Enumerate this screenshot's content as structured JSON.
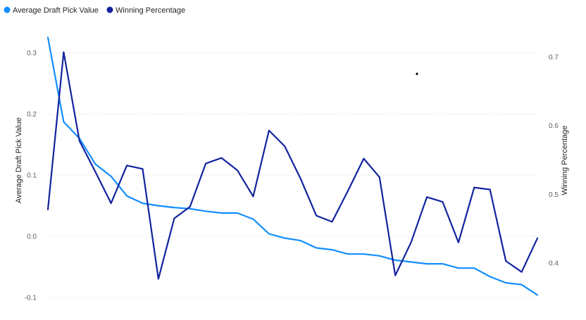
{
  "chart_data": {
    "type": "line",
    "legend": [
      {
        "name": "Average Draft Pick Value",
        "color": "#118dff"
      },
      {
        "name": "Winning Percentage",
        "color": "#12239e"
      }
    ],
    "ylabel_left": "Average Draft Pick Value",
    "ylabel_right": "Winning Percentage",
    "y_left_ticks": [
      "0.3",
      "0.2",
      "0.1",
      "0.0",
      "-0.1"
    ],
    "y_left_tick_values": [
      0.3,
      0.2,
      0.1,
      0.0,
      -0.1
    ],
    "y_right_ticks": [
      "0.7",
      "0.6",
      "0.5",
      "0.4"
    ],
    "y_right_tick_values": [
      0.7,
      0.6,
      0.5,
      0.4
    ],
    "y_left_range": [
      -0.11,
      0.33
    ],
    "y_right_range": [
      0.345,
      0.745
    ],
    "legend_position": "top-left",
    "grid": true,
    "series": [
      {
        "name": "Average Draft Pick Value",
        "axis": "left",
        "color": "#118dff",
        "values": [
          0.325,
          0.187,
          0.16,
          0.118,
          0.098,
          0.066,
          0.054,
          0.05,
          0.047,
          0.045,
          0.041,
          0.038,
          0.038,
          0.028,
          0.004,
          -0.003,
          -0.007,
          -0.019,
          -0.022,
          -0.029,
          -0.029,
          -0.032,
          -0.039,
          -0.042,
          -0.045,
          -0.045,
          -0.052,
          -0.052,
          -0.066,
          -0.076,
          -0.079,
          -0.096
        ]
      },
      {
        "name": "Winning Percentage",
        "axis": "right",
        "color": "#12239e",
        "values": [
          0.478,
          0.707,
          0.578,
          0.533,
          0.487,
          0.542,
          0.537,
          0.377,
          0.465,
          0.482,
          0.545,
          0.553,
          0.535,
          0.497,
          0.593,
          0.57,
          0.523,
          0.469,
          0.46,
          0.505,
          0.552,
          0.525,
          0.382,
          0.43,
          0.496,
          0.489,
          0.43,
          0.51,
          0.507,
          0.403,
          0.387,
          0.436
        ]
      }
    ]
  }
}
